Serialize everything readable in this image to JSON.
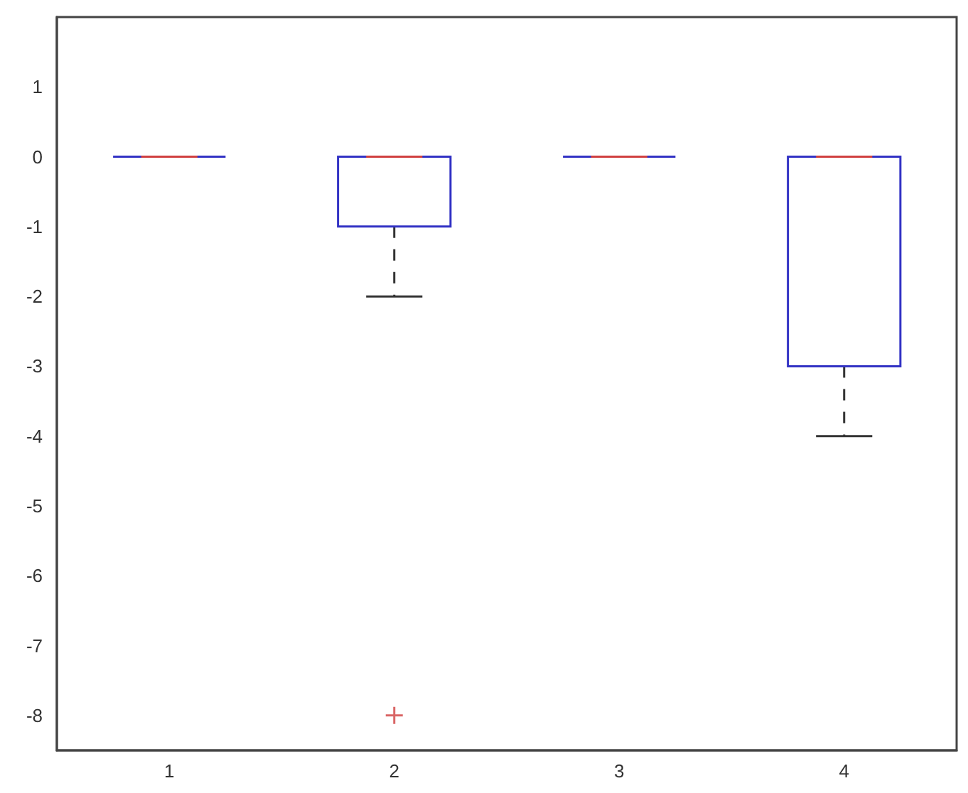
{
  "chart_data": {
    "type": "box",
    "categories": [
      "1",
      "2",
      "3",
      "4"
    ],
    "series": [
      {
        "color": "#3232c4",
        "boxes": [
          {
            "low": 0,
            "q1": 0,
            "median": 0,
            "q3": 0,
            "high": 0
          },
          {
            "low": -2,
            "q1": -1,
            "median": 0,
            "q3": 0,
            "high": 0,
            "outliers": [
              -8
            ]
          },
          {
            "low": 0,
            "q1": 0,
            "median": 0,
            "q3": 0,
            "high": 0
          },
          {
            "low": -4,
            "q1": -3,
            "median": 0,
            "q3": 0,
            "high": 0
          }
        ]
      }
    ],
    "ylim": [
      -8.5,
      2
    ],
    "yticks": [
      1,
      0,
      -1,
      -2,
      -3,
      -4,
      -5,
      -6,
      -7,
      -8
    ],
    "grid": false
  }
}
